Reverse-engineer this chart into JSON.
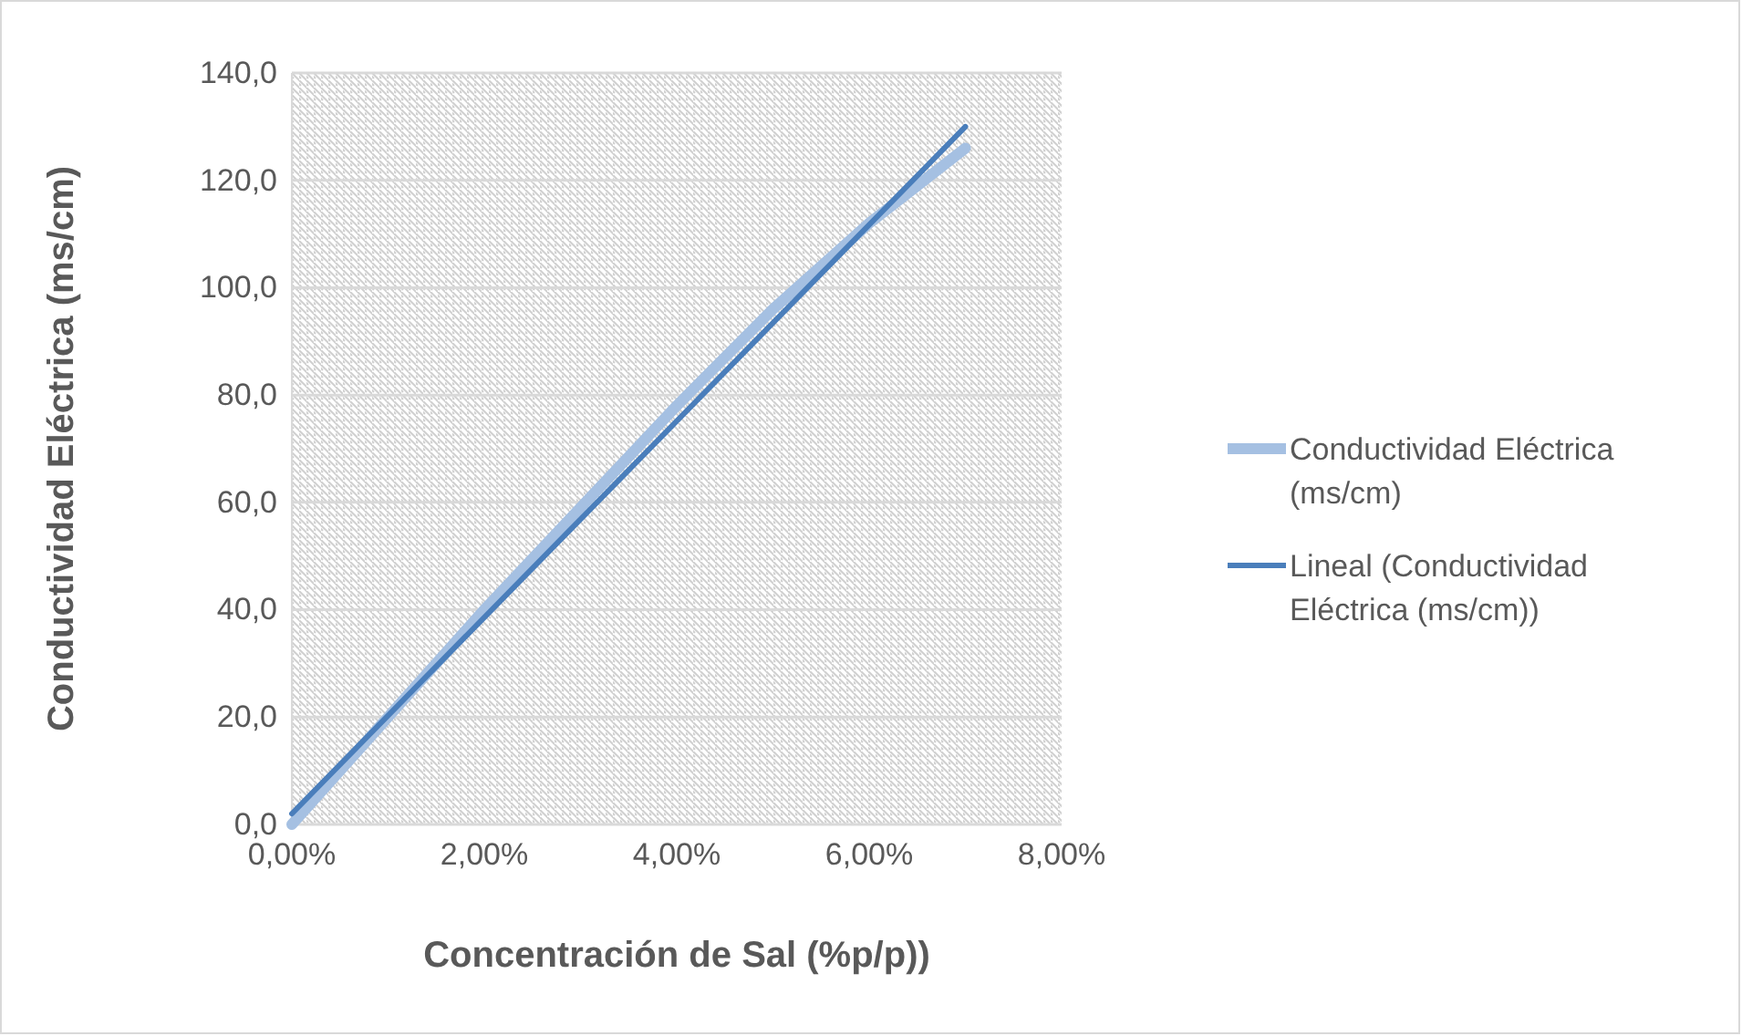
{
  "chart_data": {
    "type": "line",
    "xlabel": "Concentración de Sal (%p/p))",
    "ylabel": "Conductividad Eléctrica (ms/cm)",
    "x": [
      0,
      0.01,
      0.02,
      0.03,
      0.04,
      0.05,
      0.06,
      0.07
    ],
    "series": [
      {
        "name": "Conductividad Eléctrica (ms/cm)",
        "color": "#a5c0e2",
        "values": [
          0,
          20,
          40,
          59,
          78,
          96,
          112,
          126
        ]
      },
      {
        "name": "Lineal (Conductividad Eléctrica (ms/cm))",
        "type": "line",
        "color": "#4a7ebb",
        "x": [
          0,
          0.07
        ],
        "values": [
          2,
          130
        ]
      }
    ],
    "xlim": [
      0,
      0.08
    ],
    "xticks": [
      {
        "value": 0,
        "label": "0,00%"
      },
      {
        "value": 0.02,
        "label": "2,00%"
      },
      {
        "value": 0.04,
        "label": "4,00%"
      },
      {
        "value": 0.06,
        "label": "6,00%"
      },
      {
        "value": 0.08,
        "label": "8,00%"
      }
    ],
    "ylim": [
      0,
      140
    ],
    "yticks": [
      {
        "value": 0,
        "label": "0,0"
      },
      {
        "value": 20,
        "label": "20,0"
      },
      {
        "value": 40,
        "label": "40,0"
      },
      {
        "value": 60,
        "label": "60,0"
      },
      {
        "value": 80,
        "label": "80,0"
      },
      {
        "value": 100,
        "label": "100,0"
      },
      {
        "value": 120,
        "label": "120,0"
      },
      {
        "value": 140,
        "label": "140,0"
      }
    ],
    "grid": "y",
    "legend": "right",
    "marker": "none",
    "line_style": "solid"
  }
}
